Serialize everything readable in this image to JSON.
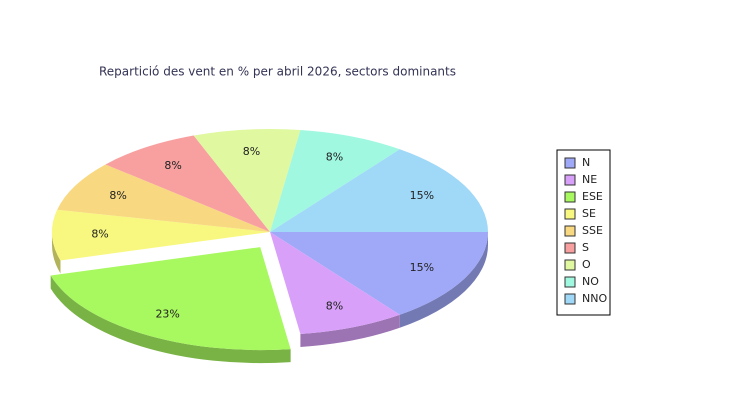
{
  "chart_data": {
    "type": "pie",
    "title": "Repartició des vent en % per abril 2026, sectors dominants",
    "categories": [
      "N",
      "NE",
      "ESE",
      "SE",
      "SSE",
      "S",
      "O",
      "NO",
      "NNO"
    ],
    "values": [
      15,
      8,
      23,
      8,
      8,
      8,
      8,
      8,
      15
    ],
    "value_labels": [
      "15%",
      "8%",
      "23%",
      "8%",
      "8%",
      "8%",
      "8%",
      "8%",
      "15%"
    ],
    "colors": [
      "#a0a8f8",
      "#d8a0f8",
      "#a8f860",
      "#f8f880",
      "#f8d880",
      "#f8a0a0",
      "#e0f8a0",
      "#a0f8e0",
      "#a0d8f8"
    ],
    "exploded": [
      2
    ],
    "legend": "right"
  }
}
